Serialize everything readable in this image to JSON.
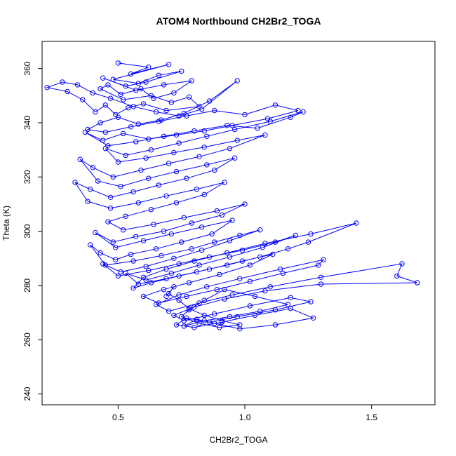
{
  "chart_data": {
    "type": "scatter",
    "title": "ATOM4 Northbound CH2Br2_TOGA",
    "xlabel": "CH2Br2_TOGA",
    "ylabel": "Theta (K)",
    "xlim": [
      0.2,
      1.75
    ],
    "ylim": [
      236,
      370
    ],
    "xticks": [
      0.5,
      1.0,
      1.5
    ],
    "xtick_labels": [
      "0.5",
      "1.0",
      "1.5"
    ],
    "yticks": [
      240,
      260,
      280,
      300,
      320,
      340,
      360
    ],
    "ytick_labels": [
      "240",
      "260",
      "280",
      "300",
      "320",
      "340",
      "360"
    ],
    "grid": false,
    "legend": "none",
    "style": "points-and-lines",
    "series_color": "#0000ff",
    "series": [
      {
        "x": [
          0.5,
          0.62,
          0.55,
          0.7,
          0.48,
          0.58,
          0.66,
          0.75,
          0.61,
          0.53,
          0.44,
          0.57,
          0.68,
          0.79,
          0.72,
          0.64,
          0.59,
          0.51,
          0.46,
          0.43,
          0.52,
          0.63,
          0.71,
          0.78,
          0.82,
          0.69,
          0.6,
          0.54,
          0.49,
          0.45,
          0.41,
          0.36,
          0.3,
          0.22,
          0.28,
          0.34,
          0.4,
          0.47,
          0.56,
          0.65,
          0.74,
          0.83,
          0.97,
          0.86,
          0.76,
          0.67,
          0.58,
          0.5,
          0.43,
          0.38,
          0.45,
          0.55,
          0.66,
          0.77,
          0.88,
          1.0,
          1.12,
          1.21,
          1.09,
          0.95,
          0.84,
          0.73,
          0.62,
          0.52,
          0.44,
          0.37,
          0.46,
          0.57,
          0.68,
          0.8,
          0.93,
          1.05,
          1.18,
          1.23,
          1.1,
          0.96,
          0.85,
          0.74,
          0.63,
          0.53,
          0.45,
          0.5,
          0.61,
          0.72,
          0.84,
          0.97,
          1.08,
          0.94,
          0.82,
          0.7,
          0.59,
          0.48,
          0.4,
          0.35,
          0.42,
          0.51,
          0.62,
          0.73,
          0.85,
          0.96,
          0.88,
          0.77,
          0.66,
          0.56,
          0.47,
          0.39,
          0.33,
          0.38,
          0.47,
          0.58,
          0.69,
          0.81,
          0.92,
          0.84,
          0.73,
          0.63,
          0.53,
          0.46,
          0.52,
          0.64,
          0.76,
          0.89,
          1.0,
          0.91,
          0.79,
          0.68,
          0.57,
          0.48,
          0.41,
          0.49,
          0.6,
          0.71,
          0.83,
          0.95,
          0.87,
          0.75,
          0.65,
          0.55,
          0.49,
          0.43,
          0.39,
          0.45,
          0.56,
          0.67,
          0.79,
          0.88,
          0.98,
          1.06,
          0.94,
          0.83,
          0.72,
          0.61,
          0.51,
          0.44,
          0.5,
          0.62,
          0.74,
          0.86,
          0.99,
          1.12,
          1.2,
          1.07,
          0.94,
          0.82,
          0.71,
          0.61,
          0.53,
          0.58,
          0.69,
          0.81,
          0.93,
          1.06,
          1.17,
          1.25,
          1.44,
          1.26,
          1.08,
          0.93,
          0.8,
          0.69,
          0.6,
          0.56,
          0.63,
          0.74,
          0.86,
          0.99,
          1.11,
          1.02,
          0.9,
          0.78,
          0.68,
          0.6,
          0.66,
          0.77,
          0.89,
          1.02,
          1.15,
          1.29,
          1.31,
          1.14,
          0.98,
          0.85,
          0.74,
          0.65,
          0.7,
          0.82,
          0.95,
          1.1,
          1.3,
          1.62,
          1.6,
          1.68,
          1.3,
          1.08,
          0.92,
          0.8,
          0.72,
          0.76,
          0.88,
          1.02,
          1.18,
          1.26,
          1.12,
          0.97,
          0.86,
          0.77,
          0.73,
          0.8,
          0.91,
          1.04,
          1.18,
          1.27,
          1.12,
          0.98,
          0.88,
          0.81,
          0.76,
          0.84,
          0.94,
          1.06,
          1.17,
          1.04,
          0.92,
          0.84,
          0.78,
          0.75,
          0.82,
          0.9,
          0.98,
          0.91,
          0.84,
          0.78,
          0.74,
          0.7,
          0.72,
          0.69
        ],
        "y": [
          362.0,
          360.5,
          358.0,
          361.5,
          356.0,
          354.5,
          357.5,
          359.0,
          355.0,
          353.5,
          356.5,
          352.0,
          354.0,
          355.5,
          351.0,
          349.0,
          352.5,
          350.5,
          354.0,
          352.5,
          348.5,
          350.0,
          347.5,
          349.5,
          346.0,
          344.5,
          347.0,
          345.5,
          343.0,
          346.5,
          344.0,
          348.5,
          351.5,
          353.0,
          355.0,
          354.0,
          351.0,
          349.0,
          346.0,
          344.0,
          342.5,
          345.0,
          355.5,
          348.0,
          343.5,
          341.0,
          339.5,
          342.0,
          340.0,
          337.5,
          336.5,
          338.5,
          340.5,
          342.5,
          344.5,
          343.0,
          346.5,
          344.5,
          341.5,
          339.0,
          337.0,
          335.5,
          334.0,
          336.0,
          333.5,
          336.5,
          331.5,
          333.0,
          335.0,
          337.0,
          339.0,
          338.0,
          342.0,
          344.0,
          340.5,
          337.5,
          335.0,
          332.5,
          330.0,
          328.0,
          330.5,
          325.5,
          327.0,
          329.0,
          331.0,
          333.5,
          335.5,
          330.5,
          327.5,
          325.0,
          322.5,
          320.0,
          323.5,
          326.5,
          318.5,
          316.5,
          319.5,
          322.0,
          324.5,
          327.0,
          322.5,
          319.5,
          317.0,
          314.5,
          312.5,
          315.5,
          318.0,
          311.0,
          308.5,
          310.5,
          313.0,
          315.5,
          318.0,
          313.5,
          310.5,
          308.0,
          305.5,
          303.5,
          300.5,
          302.5,
          305.0,
          307.5,
          310.0,
          306.0,
          303.0,
          300.0,
          298.0,
          296.0,
          299.5,
          294.0,
          296.5,
          299.0,
          301.5,
          304.0,
          299.0,
          296.0,
          293.5,
          291.5,
          289.5,
          292.0,
          295.0,
          287.5,
          289.0,
          291.0,
          293.5,
          296.0,
          298.5,
          300.5,
          296.5,
          293.0,
          290.0,
          287.0,
          285.0,
          288.0,
          283.5,
          285.5,
          288.0,
          290.5,
          293.0,
          296.0,
          298.5,
          294.0,
          290.5,
          287.5,
          284.5,
          282.0,
          284.5,
          280.5,
          282.5,
          285.0,
          287.5,
          290.5,
          293.5,
          296.0,
          303.0,
          299.0,
          295.5,
          292.0,
          289.0,
          286.0,
          283.0,
          279.0,
          281.0,
          283.5,
          286.0,
          289.0,
          291.5,
          287.5,
          284.0,
          281.0,
          278.5,
          276.0,
          273.5,
          276.0,
          278.5,
          281.5,
          284.5,
          287.5,
          289.5,
          286.0,
          282.5,
          279.5,
          276.5,
          273.0,
          270.5,
          273.5,
          276.5,
          279.5,
          283.0,
          288.0,
          283.5,
          281.0,
          280.5,
          278.0,
          275.0,
          272.0,
          269.0,
          267.0,
          269.5,
          272.5,
          275.5,
          274.0,
          271.0,
          268.5,
          266.5,
          268.0,
          265.5,
          264.5,
          266.5,
          269.0,
          271.5,
          268.0,
          265.5,
          264.0,
          266.0,
          267.5,
          265.0,
          267.0,
          268.5,
          270.5,
          273.0,
          276.0,
          278.5,
          274.5,
          271.0,
          268.5,
          266.0,
          264.5,
          265.5,
          267.0,
          269.0,
          271.5,
          274.5,
          277.0,
          279.5,
          276.0
        ]
      }
    ]
  }
}
